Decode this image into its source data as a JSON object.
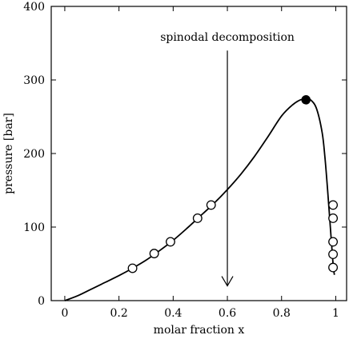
{
  "chart_data": {
    "type": "line",
    "xlabel": "molar fraction x",
    "ylabel": "pressure [bar]",
    "xlim": [
      -0.05,
      1.04
    ],
    "ylim": [
      0,
      400
    ],
    "xticks": [
      0,
      0.2,
      0.4,
      0.6,
      0.8,
      1
    ],
    "xtick_labels": [
      "0",
      "0.2",
      "0.4",
      "0.6",
      "0.8",
      "1"
    ],
    "yticks": [
      0,
      100,
      200,
      300,
      400
    ],
    "ytick_labels": [
      "0",
      "100",
      "200",
      "300",
      "400"
    ],
    "grid": false,
    "curve": {
      "x": [
        0.0,
        0.05,
        0.1,
        0.15,
        0.2,
        0.25,
        0.3,
        0.35,
        0.4,
        0.45,
        0.5,
        0.55,
        0.6,
        0.65,
        0.7,
        0.75,
        0.8,
        0.84,
        0.87,
        0.89,
        0.91,
        0.93,
        0.95,
        0.96,
        0.97,
        0.98,
        0.99,
        0.995
      ],
      "y": [
        0,
        7,
        16,
        25,
        34,
        44,
        55,
        68,
        82,
        98,
        115,
        132,
        151,
        172,
        196,
        223,
        251,
        266,
        273,
        274,
        272,
        260,
        228,
        195,
        150,
        100,
        50,
        35
      ]
    },
    "open_points": {
      "x": [
        0.25,
        0.33,
        0.39,
        0.49,
        0.54,
        0.99,
        0.99,
        0.99,
        0.99,
        0.99
      ],
      "y": [
        44,
        64,
        80,
        112,
        130,
        130,
        112,
        80,
        63,
        45
      ]
    },
    "filled_points": {
      "x": [
        0.89
      ],
      "y": [
        273
      ]
    },
    "annotation": {
      "text": "spinodal decomposition",
      "arrow_x": 0.6,
      "arrow_y_from": 340,
      "arrow_y_to": 20
    }
  }
}
